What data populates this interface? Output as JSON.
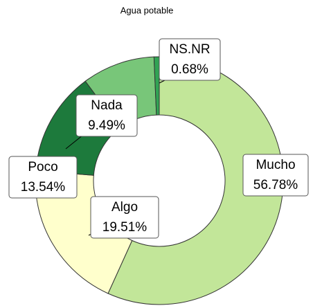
{
  "chart_data": {
    "type": "donut",
    "title": "Agua potable",
    "categories": [
      "Mucho",
      "Algo",
      "Poco",
      "Nada",
      "NS.NR"
    ],
    "values": [
      56.78,
      19.51,
      13.54,
      9.49,
      0.68
    ],
    "value_labels": [
      "56.78%",
      "19.51%",
      "13.54%",
      "9.49%",
      "0.68%"
    ],
    "colors": [
      "#c2e699",
      "#ffffcc",
      "#1d7a3c",
      "#78c679",
      "#31a354"
    ]
  }
}
